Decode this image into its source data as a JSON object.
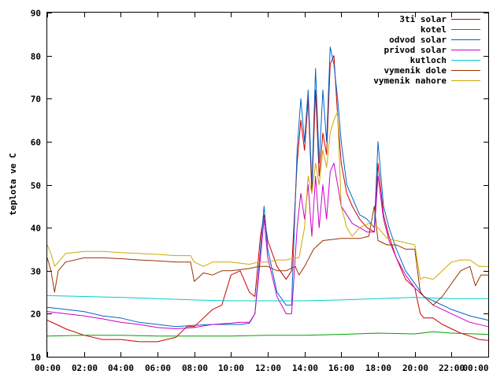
{
  "chart_data": {
    "type": "line",
    "title": "",
    "xlabel": "",
    "ylabel": "teplota ve C",
    "xlim": [
      0,
      24
    ],
    "ylim": [
      10,
      90
    ],
    "grid": false,
    "legend_position": "top-right",
    "x_ticks": [
      0,
      2,
      4,
      6,
      8,
      10,
      12,
      14,
      16,
      18,
      20,
      22,
      24
    ],
    "x_tick_labels": [
      "00:00",
      "02:00",
      "04:00",
      "06:00",
      "08:00",
      "10:00",
      "12:00",
      "14:00",
      "16:00",
      "18:00",
      "20:00",
      "22:00",
      "00:00"
    ],
    "y_ticks": [
      10,
      20,
      30,
      40,
      50,
      60,
      70,
      80,
      90
    ],
    "y_tick_labels": [
      "10",
      "20",
      "30",
      "40",
      "50",
      "60",
      "70",
      "80",
      "90"
    ],
    "series": [
      {
        "name": "3ti solar",
        "color": "#cc0000",
        "x": [
          0,
          0.5,
          1,
          2,
          3,
          4,
          5,
          6,
          7,
          7.6,
          8,
          9,
          9.5,
          10,
          10.5,
          11,
          11.3,
          11.6,
          11.8,
          12,
          12.5,
          13,
          13.3,
          13.6,
          13.8,
          14,
          14.2,
          14.4,
          14.6,
          14.8,
          15,
          15.2,
          15.4,
          15.6,
          15.8,
          16,
          16.3,
          16.6,
          17,
          17.4,
          17.8,
          18,
          18.3,
          18.6,
          19,
          19.5,
          20,
          20.3,
          20.5,
          21,
          21.5,
          22,
          22.5,
          23,
          23.5,
          24
        ],
        "y": [
          18.5,
          17.5,
          16.5,
          15,
          14,
          14,
          13.5,
          13.5,
          14.5,
          17,
          17,
          21,
          22,
          29,
          30,
          25,
          24,
          38,
          43,
          37,
          31,
          28,
          30,
          55,
          65,
          58,
          70,
          48,
          72,
          52,
          62,
          57,
          78,
          80,
          66,
          55,
          48,
          45,
          42,
          40,
          39,
          55,
          43,
          38,
          33,
          28,
          26,
          20,
          19,
          19,
          17.5,
          16.5,
          15.5,
          14.8,
          14,
          13.8
        ]
      },
      {
        "name": "kotel",
        "color": "#00a000",
        "x": [
          0,
          2,
          4,
          6,
          8,
          10,
          12,
          14,
          16,
          18,
          20,
          21,
          22,
          24
        ],
        "y": [
          14.8,
          15,
          15,
          14.8,
          14.8,
          14.8,
          15,
          15,
          15.2,
          15.5,
          15.3,
          15.8,
          15.5,
          15.2
        ]
      },
      {
        "name": "odvod solar",
        "color": "#0066cc",
        "x": [
          0,
          1,
          2,
          3,
          4,
          5,
          6,
          7,
          8,
          9,
          10,
          10.5,
          11,
          11.3,
          11.6,
          11.8,
          12,
          12.5,
          13,
          13.3,
          13.6,
          13.8,
          14,
          14.2,
          14.4,
          14.6,
          14.8,
          15,
          15.2,
          15.4,
          15.6,
          15.8,
          16,
          16.3,
          16.6,
          17,
          17.4,
          17.8,
          18,
          18.3,
          18.6,
          19,
          19.5,
          20,
          20.5,
          21,
          22,
          23,
          24
        ],
        "y": [
          21.5,
          21,
          20.5,
          19.5,
          19,
          18,
          17.5,
          17,
          17.3,
          17.5,
          17.5,
          17.5,
          17.8,
          20,
          35,
          45,
          35,
          25,
          22,
          22,
          58,
          70,
          60,
          72,
          50,
          77,
          55,
          72,
          60,
          82,
          78,
          70,
          60,
          50,
          47,
          43,
          42,
          40,
          60,
          45,
          40,
          35,
          30,
          27,
          24,
          23,
          21,
          19.5,
          18.5
        ]
      },
      {
        "name": "privod solar",
        "color": "#cc00cc",
        "x": [
          0,
          1,
          2,
          3,
          4,
          5,
          6,
          7,
          8,
          9,
          10,
          10.5,
          11,
          11.3,
          11.6,
          11.8,
          12,
          12.5,
          13,
          13.3,
          13.6,
          13.8,
          14,
          14.2,
          14.4,
          14.6,
          14.8,
          15,
          15.2,
          15.4,
          15.6,
          15.8,
          16,
          16.3,
          16.6,
          17,
          17.4,
          17.8,
          18,
          18.3,
          18.6,
          19,
          19.5,
          20,
          20.5,
          21,
          22,
          23,
          24
        ],
        "y": [
          20.5,
          20,
          19.5,
          18.8,
          18,
          17.5,
          16.8,
          16.5,
          16.8,
          17.5,
          17.8,
          18,
          18,
          20,
          33,
          42,
          33,
          24,
          20,
          20,
          40,
          48,
          42,
          50,
          38,
          52,
          40,
          50,
          42,
          53,
          55,
          50,
          45,
          43,
          41,
          40,
          39,
          39,
          52,
          42,
          37,
          33,
          29,
          26,
          24,
          22,
          20,
          18,
          17
        ]
      },
      {
        "name": "kutloch",
        "color": "#00cccc",
        "x": [
          0,
          2,
          4,
          6,
          8,
          10,
          12,
          14,
          16,
          18,
          20,
          22,
          24
        ],
        "y": [
          24.2,
          24,
          23.8,
          23.5,
          23.2,
          23,
          23,
          23,
          23.2,
          23.5,
          23.8,
          23.5,
          23.5
        ]
      },
      {
        "name": "vymenik dole",
        "color": "#993300",
        "x": [
          0,
          0.2,
          0.4,
          0.6,
          1,
          2,
          3,
          4,
          5,
          6,
          7,
          7.8,
          8,
          8.5,
          9,
          9.5,
          10,
          11,
          11.5,
          12,
          12.5,
          13,
          13.5,
          13.7,
          14,
          14.5,
          15,
          16,
          17,
          17.5,
          17.8,
          18,
          18.5,
          19,
          19.5,
          20,
          20.3,
          20.5,
          21,
          21.5,
          22,
          22.5,
          23,
          23.3,
          23.6,
          24
        ],
        "y": [
          33,
          30,
          25,
          30,
          32,
          33,
          33,
          32.8,
          32.5,
          32.3,
          32,
          32,
          27.5,
          29.5,
          29,
          30,
          30,
          30.5,
          31,
          31,
          30,
          30,
          31,
          29,
          31,
          35,
          37,
          37.5,
          37.5,
          38,
          45,
          37,
          36,
          36,
          35,
          35,
          25,
          24,
          22,
          24,
          27,
          30,
          31,
          26.5,
          29,
          29
        ]
      },
      {
        "name": "vymenik nahore",
        "color": "#ccaa00",
        "x": [
          0,
          0.2,
          0.4,
          0.6,
          1,
          2,
          3,
          4,
          5,
          6,
          7,
          7.8,
          8,
          8.5,
          9,
          10,
          11,
          11.5,
          12,
          12.5,
          13,
          13.5,
          13.7,
          14,
          14.2,
          14.4,
          14.6,
          14.8,
          15,
          15.2,
          15.4,
          15.6,
          15.8,
          16,
          16.3,
          16.6,
          17,
          17.5,
          18,
          18.5,
          19,
          20,
          20.3,
          20.5,
          21,
          21.5,
          22,
          22.5,
          23,
          23.5,
          24
        ],
        "y": [
          36,
          34,
          31,
          32,
          34,
          34.5,
          34.5,
          34.2,
          34,
          33.8,
          33.5,
          33.5,
          32,
          31,
          32,
          32,
          31.5,
          32,
          32,
          32.5,
          32.5,
          33,
          33,
          40,
          52,
          48,
          55,
          50,
          58,
          54,
          62,
          65,
          67,
          45,
          40,
          38,
          40,
          41,
          40,
          37.5,
          37,
          36,
          28,
          28.5,
          28,
          30,
          32,
          32.5,
          32.5,
          31,
          31
        ]
      }
    ]
  }
}
